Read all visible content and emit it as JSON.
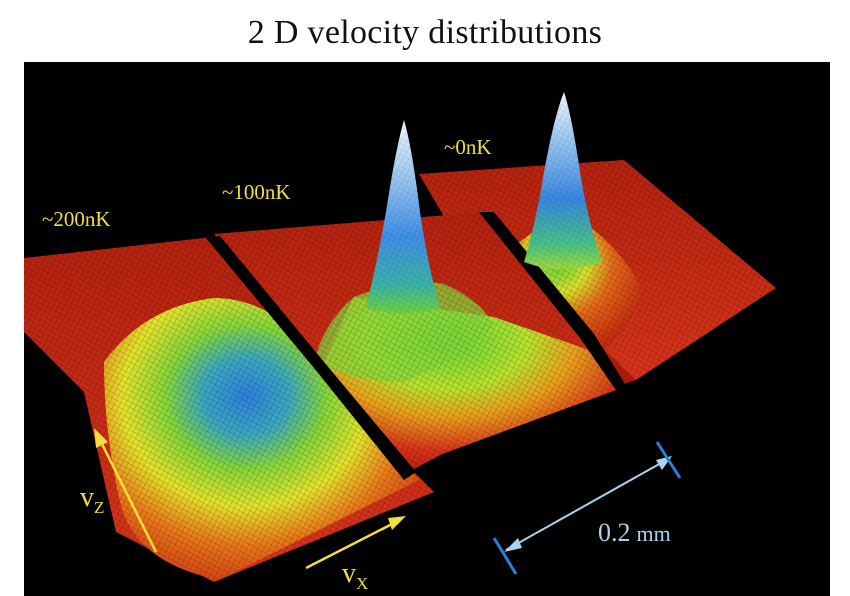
{
  "title": "2 D velocity distributions",
  "temperatures": [
    "~200nK",
    "~100nK",
    "~0nK"
  ],
  "axes": {
    "vz": {
      "main": "v",
      "sub": "Z"
    },
    "vx": {
      "main": "v",
      "sub": "X"
    }
  },
  "scale_bar": {
    "value": "0.2",
    "unit": "mm"
  },
  "colors": {
    "background": "#000000",
    "label_yellow": "#f2df3a",
    "scale_blue": "#a9d3ee",
    "surface_red": "#d42a12",
    "surface_green": "#7ed43a",
    "peak_blue": "#3a8ee8",
    "peak_white": "#eef4fb"
  }
}
